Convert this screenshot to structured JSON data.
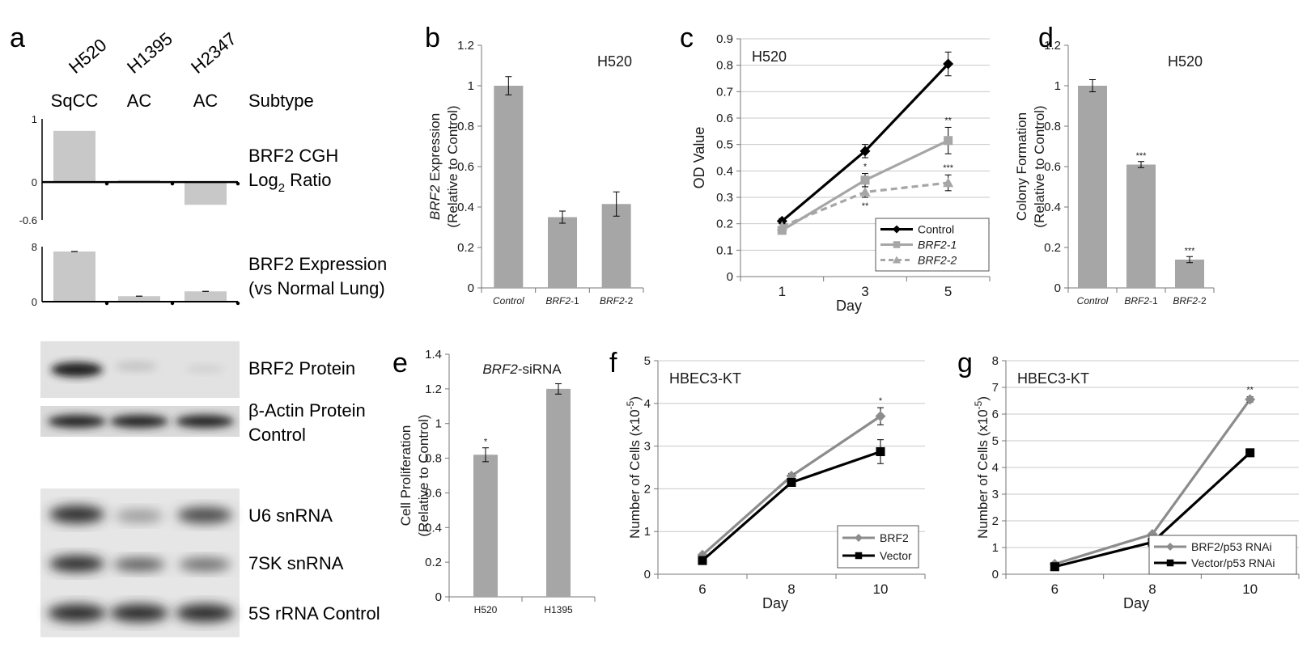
{
  "panel_letters": {
    "a": "a",
    "b": "b",
    "c": "c",
    "d": "d",
    "e": "e",
    "f": "f",
    "g": "g"
  },
  "panel_a": {
    "cell_lines": [
      "H520",
      "H1395",
      "H2347"
    ],
    "subtypes": [
      "SqCC",
      "AC",
      "AC"
    ],
    "subtype_label": "Subtype",
    "cgh": {
      "label_line1": "BRF2 CGH",
      "label_line2_prefix": "Log",
      "label_line2_sub": "2",
      "label_line2_suffix": " Ratio",
      "ticks": [
        "1",
        "0",
        "-0.6"
      ],
      "ylim": [
        -0.6,
        1
      ],
      "values": [
        0.81,
        0.03,
        -0.36
      ]
    },
    "expression": {
      "label_line1": "BRF2 Expression",
      "label_line2": "(vs Normal Lung)",
      "ticks": [
        "8",
        "0"
      ],
      "ylim": [
        0,
        8
      ],
      "values": [
        7.3,
        0.8,
        1.5
      ]
    },
    "blot_labels": {
      "brf2_protein": "BRF2 Protein",
      "actin_line1": "β-Actin Protein",
      "actin_line2": "Control",
      "u6": "U6 snRNA",
      "sk7": "7SK snRNA",
      "s5": "5S rRNA Control"
    }
  },
  "chart_data": [
    {
      "panel": "b",
      "type": "bar",
      "inset_label": "H520",
      "ylabel_italic": "BRF2",
      "ylabel_rest": " Expression",
      "ylabel_line2": "(Relative to Control)",
      "xlabel": "",
      "categories": [
        "Control",
        "BRF2-1",
        "BRF2-2"
      ],
      "category_display": [
        [
          "Control",
          ""
        ],
        [
          "BRF2",
          "-1"
        ],
        [
          "BRF2",
          "-2"
        ]
      ],
      "values": [
        1.0,
        0.35,
        0.415
      ],
      "errors": [
        0.045,
        0.03,
        0.06
      ],
      "significance": [
        "",
        "",
        ""
      ],
      "ylim": [
        0,
        1.2
      ],
      "yticks": [
        "0",
        "0.2",
        "0.4",
        "0.6",
        "0.8",
        "1",
        "1.2"
      ],
      "bar_color": "#a6a6a6",
      "grid": false
    },
    {
      "panel": "c",
      "type": "line",
      "inset_label": "H520",
      "xlabel": "Day",
      "ylabel": "OD Value",
      "x": [
        "1",
        "3",
        "5"
      ],
      "ylim": [
        0,
        0.9
      ],
      "yticks": [
        "0",
        "0.1",
        "0.2",
        "0.3",
        "0.4",
        "0.5",
        "0.6",
        "0.7",
        "0.8",
        "0.9"
      ],
      "grid": true,
      "legend_position": "bottom-right",
      "series": [
        {
          "name": "Control",
          "values": [
            0.21,
            0.475,
            0.805
          ],
          "errors": [
            0.01,
            0.025,
            0.045
          ],
          "color": "#000000",
          "marker": "diamond",
          "dash": "",
          "sig": [
            "",
            "",
            ""
          ]
        },
        {
          "name": "BRF2-1",
          "values": [
            0.175,
            0.365,
            0.515
          ],
          "errors": [
            0.01,
            0.025,
            0.05
          ],
          "color": "#a6a6a6",
          "marker": "square",
          "dash": "",
          "sig": [
            "",
            "*",
            "**"
          ]
        },
        {
          "name": "BRF2-2",
          "values": [
            0.19,
            0.32,
            0.355
          ],
          "errors": [
            0.01,
            0.02,
            0.03
          ],
          "color": "#a6a6a6",
          "marker": "triangle",
          "dash": "8 5",
          "sig": [
            "",
            "**",
            "***"
          ]
        }
      ]
    },
    {
      "panel": "d",
      "type": "bar",
      "inset_label": "H520",
      "ylabel_italic": "",
      "ylabel_rest": "Colony Formation",
      "ylabel_line2": "(Relative to Control)",
      "xlabel": "",
      "categories": [
        "Control",
        "BRF2-1",
        "BRF2-2"
      ],
      "category_display": [
        [
          "Control",
          ""
        ],
        [
          "BRF2",
          "-1"
        ],
        [
          "BRF2",
          "-2"
        ]
      ],
      "values": [
        1.0,
        0.61,
        0.14
      ],
      "errors": [
        0.03,
        0.015,
        0.015
      ],
      "significance": [
        "",
        "***",
        "***"
      ],
      "ylim": [
        0,
        1.2
      ],
      "yticks": [
        "0",
        "0.2",
        "0.4",
        "0.6",
        "0.8",
        "1",
        "1.2"
      ],
      "bar_color": "#a6a6a6",
      "grid": false
    },
    {
      "panel": "e",
      "type": "bar",
      "inset_label_italic": "BRF2",
      "inset_label_rest": "-siRNA",
      "ylabel_italic": "",
      "ylabel_rest": "Cell Proliferation",
      "ylabel_line2": "(Relative to Control)",
      "xlabel": "",
      "categories": [
        "H520",
        "H1395"
      ],
      "category_display": [
        [
          "",
          "H520"
        ],
        [
          "",
          "H1395"
        ]
      ],
      "values": [
        0.82,
        1.2
      ],
      "errors": [
        0.04,
        0.03
      ],
      "significance": [
        "*",
        ""
      ],
      "ylim": [
        0,
        1.4
      ],
      "yticks": [
        "0",
        "0.2",
        "0.4",
        "0.6",
        "0.8",
        "1",
        "1.2",
        "1.4"
      ],
      "bar_color": "#a6a6a6",
      "grid": false
    },
    {
      "panel": "f",
      "type": "line",
      "inset_label": "HBEC3-KT",
      "xlabel": "Day",
      "ylabel_prefix": "Number of Cells (x10",
      "ylabel_sup": "-5",
      "ylabel_suffix": ")",
      "x": [
        "6",
        "8",
        "10"
      ],
      "ylim": [
        0,
        5
      ],
      "yticks": [
        "0",
        "1",
        "2",
        "3",
        "4",
        "5"
      ],
      "grid": true,
      "legend_position": "bottom-right",
      "series": [
        {
          "name": "BRF2",
          "values": [
            0.45,
            2.3,
            3.7
          ],
          "errors": [
            0.03,
            0.06,
            0.2
          ],
          "color": "#8c8c8c",
          "marker": "diamond",
          "dash": "",
          "sig": [
            "",
            "",
            "*"
          ]
        },
        {
          "name": "Vector",
          "values": [
            0.32,
            2.15,
            2.87
          ],
          "errors": [
            0.03,
            0.06,
            0.28
          ],
          "color": "#000000",
          "marker": "square",
          "dash": "",
          "sig": [
            "",
            "",
            ""
          ]
        }
      ]
    },
    {
      "panel": "g",
      "type": "line",
      "inset_label": "HBEC3-KT",
      "xlabel": "Day",
      "ylabel_prefix": "Number of Cells (x10",
      "ylabel_sup": "-5",
      "ylabel_suffix": ")",
      "x": [
        "6",
        "8",
        "10"
      ],
      "ylim": [
        0,
        8
      ],
      "yticks": [
        "0",
        "1",
        "2",
        "3",
        "4",
        "5",
        "6",
        "7",
        "8"
      ],
      "grid": true,
      "legend_position": "bottom-right",
      "series": [
        {
          "name": "BRF2/p53 RNAi",
          "values": [
            0.38,
            1.5,
            6.55
          ],
          "errors": [
            0.03,
            0.06,
            0.1
          ],
          "color": "#8c8c8c",
          "marker": "diamond",
          "dash": "",
          "sig": [
            "",
            "",
            "**"
          ]
        },
        {
          "name": "Vector/p53 RNAi",
          "values": [
            0.28,
            1.2,
            4.55
          ],
          "errors": [
            0.03,
            0.05,
            0.05
          ],
          "color": "#000000",
          "marker": "square",
          "dash": "",
          "sig": [
            "",
            "",
            ""
          ]
        }
      ]
    }
  ]
}
